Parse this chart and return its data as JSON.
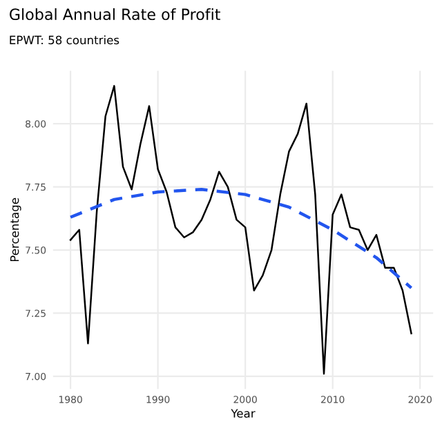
{
  "chart_data": {
    "type": "line",
    "title": "Global Annual Rate of Profit",
    "subtitle": "EPWT: 58 countries",
    "xlabel": "Year",
    "ylabel": "Percentage",
    "xlim": [
      1978,
      2021.5
    ],
    "ylim": [
      6.95,
      8.21
    ],
    "xticks": [
      1980,
      1990,
      2000,
      2010,
      2020
    ],
    "yticks": [
      {
        "value": 7.0,
        "label": "7.00"
      },
      {
        "value": 7.25,
        "label": "7.25"
      },
      {
        "value": 7.5,
        "label": "7.50"
      },
      {
        "value": 7.75,
        "label": "7.75"
      },
      {
        "value": 8.0,
        "label": "8.00"
      }
    ],
    "grid": true,
    "legend": false,
    "series": [
      {
        "color": "#000000",
        "line_style": "solid",
        "x": [
          1980,
          1981,
          1982,
          1983,
          1984,
          1985,
          1986,
          1987,
          1988,
          1989,
          1990,
          1991,
          1992,
          1993,
          1994,
          1995,
          1996,
          1997,
          1998,
          1999,
          2000,
          2001,
          2002,
          2003,
          2004,
          2005,
          2006,
          2007,
          2008,
          2009,
          2010,
          2011,
          2012,
          2013,
          2014,
          2015,
          2016,
          2017,
          2018,
          2019
        ],
        "values": [
          7.54,
          7.58,
          7.13,
          7.65,
          8.03,
          8.15,
          7.83,
          7.74,
          7.92,
          8.07,
          7.82,
          7.73,
          7.59,
          7.55,
          7.57,
          7.62,
          7.7,
          7.81,
          7.75,
          7.62,
          7.59,
          7.34,
          7.4,
          7.5,
          7.72,
          7.89,
          7.96,
          8.08,
          7.72,
          7.01,
          7.64,
          7.72,
          7.59,
          7.58,
          7.5,
          7.56,
          7.43,
          7.43,
          7.34,
          7.17
        ]
      },
      {
        "color": "#2255ee",
        "line_style": "dashed",
        "x": [
          1980,
          1985,
          1990,
          1995,
          2000,
          2005,
          2010,
          2015,
          2019
        ],
        "values": [
          7.63,
          7.7,
          7.73,
          7.74,
          7.72,
          7.67,
          7.58,
          7.47,
          7.35
        ]
      }
    ]
  }
}
